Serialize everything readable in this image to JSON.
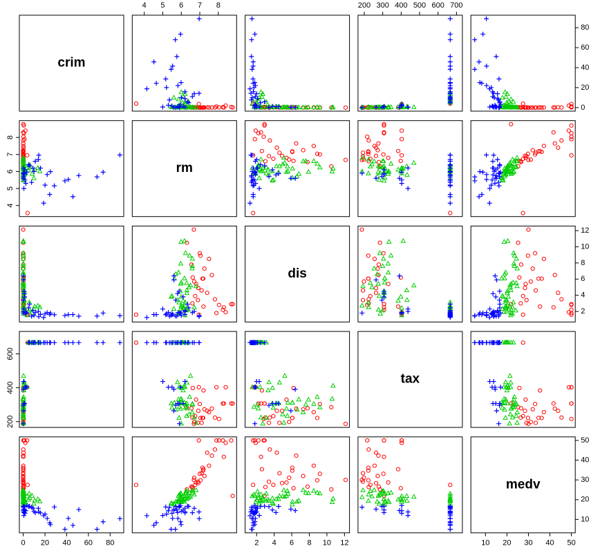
{
  "chart_data": {
    "type": "scatter_matrix",
    "variables": [
      {
        "name": "crim",
        "lim": [
          -3.55,
          92.5
        ],
        "xticks": [
          0,
          20,
          40,
          60,
          80
        ],
        "yticks": [
          0,
          20,
          40,
          60,
          80
        ]
      },
      {
        "name": "rm",
        "lim": [
          3.35,
          8.99
        ],
        "xticks": [
          4,
          5,
          6,
          7,
          8
        ],
        "yticks": [
          4,
          5,
          6,
          7,
          8
        ]
      },
      {
        "name": "dis",
        "lim": [
          0.69,
          12.57
        ],
        "xticks": [
          2,
          4,
          6,
          8,
          10,
          12
        ],
        "yticks": [
          2,
          4,
          6,
          8,
          10,
          12
        ]
      },
      {
        "name": "tax",
        "lim": [
          166,
          732
        ],
        "xticks": [
          200,
          300,
          400,
          500,
          600,
          700
        ],
        "yticks": [
          200,
          400,
          600
        ]
      },
      {
        "name": "medv",
        "lim": [
          3.2,
          51.8
        ],
        "xticks": [
          10,
          20,
          30,
          40,
          50
        ],
        "yticks": [
          10,
          20,
          30,
          40,
          50
        ]
      }
    ],
    "series": [
      {
        "color": "#ff0000",
        "marker": "circle",
        "values": [
          [
            0.03,
            7.18,
            6.06,
            222,
            34.7
          ],
          [
            0.03,
            7.15,
            6.06,
            222,
            36.2
          ],
          [
            0.09,
            7.82,
            3.5,
            224,
            45.4
          ],
          [
            0.13,
            8.78,
            2.9,
            307,
            21.9
          ],
          [
            0.02,
            7.25,
            7.3,
            273,
            32.0
          ],
          [
            0.06,
            6.8,
            5.4,
            330,
            28.7
          ],
          [
            0.07,
            6.92,
            4.9,
            264,
            28.4
          ],
          [
            0.04,
            7.0,
            9.2,
            304,
            33.1
          ],
          [
            0.01,
            6.68,
            12.13,
            187,
            30.0
          ],
          [
            0.1,
            7.5,
            8.5,
            256,
            37.2
          ],
          [
            0.25,
            8.04,
            2.8,
            216,
            50.0
          ],
          [
            0.5,
            8.25,
            2.2,
            307,
            50.0
          ],
          [
            1.1,
            7.9,
            1.8,
            403,
            50.0
          ],
          [
            2.0,
            8.4,
            1.9,
            403,
            48.8
          ],
          [
            3.6,
            6.95,
            1.6,
            403,
            50.0
          ],
          [
            0.3,
            7.4,
            4.3,
            264,
            43.8
          ],
          [
            0.02,
            6.7,
            5.7,
            198,
            31.1
          ],
          [
            0.06,
            7.65,
            6.5,
            277,
            42.3
          ],
          [
            0.14,
            6.9,
            3.4,
            193,
            29.1
          ],
          [
            0.18,
            7.2,
            2.6,
            384,
            35.4
          ],
          [
            0.08,
            6.55,
            7.8,
            279,
            26.6
          ],
          [
            0.21,
            6.75,
            3.9,
            233,
            27.5
          ],
          [
            0.05,
            7.1,
            4.6,
            193,
            33.4
          ],
          [
            0.12,
            8.3,
            2.5,
            307,
            41.7
          ],
          [
            0.33,
            6.62,
            6.2,
            398,
            25.8
          ],
          [
            0.02,
            7.04,
            8.9,
            222,
            29.8
          ],
          [
            0.01,
            6.3,
            10.5,
            285,
            25.2
          ],
          [
            0.09,
            6.6,
            3.0,
            224,
            26.4
          ],
          [
            4.0,
            3.56,
            1.6,
            666,
            27.5
          ],
          [
            0.6,
            8.7,
            2.9,
            307,
            50.0
          ]
        ]
      },
      {
        "color": "#00cd00",
        "marker": "triangle",
        "values": [
          [
            0.03,
            6.42,
            4.97,
            242,
            21.6
          ],
          [
            0.09,
            6.0,
            5.56,
            311,
            22.9
          ],
          [
            0.15,
            6.17,
            6.08,
            311,
            18.9
          ],
          [
            0.21,
            5.63,
            6.06,
            311,
            17.5
          ],
          [
            0.63,
            5.95,
            4.5,
            307,
            20.2
          ],
          [
            0.73,
            6.3,
            4.25,
            307,
            20.2
          ],
          [
            0.8,
            5.46,
            3.79,
            307,
            18.2
          ],
          [
            0.06,
            5.97,
            5.4,
            276,
            21.9
          ],
          [
            0.04,
            6.29,
            5.5,
            233,
            24.3
          ],
          [
            0.1,
            6.7,
            2.5,
            224,
            22.6
          ],
          [
            0.11,
            6.17,
            10.7,
            411,
            20.4
          ],
          [
            0.02,
            5.99,
            10.6,
            334,
            18.7
          ],
          [
            0.05,
            6.23,
            9.2,
            284,
            23.1
          ],
          [
            0.08,
            6.6,
            8.5,
            304,
            24.4
          ],
          [
            0.14,
            5.97,
            7.9,
            329,
            23.2
          ],
          [
            0.03,
            6.59,
            7.3,
            254,
            24.8
          ],
          [
            0.07,
            5.85,
            6.8,
            330,
            19.4
          ],
          [
            0.26,
            6.31,
            2.2,
            277,
            22.0
          ],
          [
            0.18,
            6.0,
            2.7,
            188,
            21.2
          ],
          [
            0.5,
            5.88,
            3.1,
            222,
            19.3
          ],
          [
            1.2,
            6.12,
            2.4,
            403,
            19.6
          ],
          [
            2.2,
            5.88,
            1.9,
            403,
            18.6
          ],
          [
            3.5,
            6.2,
            1.5,
            403,
            21.7
          ],
          [
            4.9,
            6.06,
            2.0,
            666,
            19.9
          ],
          [
            6.0,
            6.38,
            2.2,
            666,
            20.8
          ],
          [
            8.2,
            5.85,
            1.8,
            666,
            21.9
          ],
          [
            9.8,
            5.6,
            2.3,
            666,
            17.9
          ],
          [
            10.6,
            6.1,
            2.6,
            666,
            19.5
          ],
          [
            13.5,
            6.2,
            2.7,
            666,
            20.2
          ],
          [
            15.3,
            6.0,
            2.5,
            666,
            19.1
          ],
          [
            5.66,
            6.22,
            3.1,
            666,
            23.0
          ],
          [
            0.44,
            6.3,
            4.6,
            430,
            21.8
          ],
          [
            0.9,
            5.8,
            3.4,
            432,
            19.4
          ],
          [
            0.31,
            6.5,
            5.2,
            469,
            21.4
          ],
          [
            0.58,
            6.0,
            3.8,
            398,
            20.6
          ],
          [
            0.12,
            6.25,
            2.1,
            300,
            24.1
          ],
          [
            0.19,
            5.9,
            1.7,
            287,
            22.5
          ],
          [
            0.35,
            6.45,
            8.9,
            345,
            23.5
          ],
          [
            0.04,
            5.7,
            6.6,
            270,
            18.9
          ],
          [
            0.06,
            6.8,
            5.1,
            193,
            24.7
          ],
          [
            0.15,
            5.5,
            3.9,
            281,
            17.8
          ],
          [
            0.01,
            6.6,
            7.6,
            300,
            23.4
          ],
          [
            0.47,
            6.1,
            3.3,
            384,
            20.0
          ]
        ]
      },
      {
        "color": "#0000ff",
        "marker": "plus",
        "values": [
          [
            88.98,
            6.97,
            1.47,
            666,
            10.4
          ],
          [
            73.53,
            5.96,
            1.8,
            666,
            8.8
          ],
          [
            67.92,
            5.68,
            1.43,
            666,
            5
          ],
          [
            51.14,
            5.76,
            1.41,
            666,
            15
          ],
          [
            45.75,
            4.52,
            1.61,
            666,
            7
          ],
          [
            41.53,
            5.53,
            1.6,
            666,
            10.5
          ],
          [
            38.35,
            5.45,
            1.49,
            666,
            5
          ],
          [
            28.66,
            5.16,
            1.59,
            666,
            16.3
          ],
          [
            25.05,
            5.99,
            1.79,
            666,
            7.4
          ],
          [
            24.39,
            4.65,
            1.61,
            666,
            8.3
          ],
          [
            22.05,
            5.82,
            1.86,
            666,
            10.5
          ],
          [
            20.08,
            5.2,
            1.7,
            666,
            12.7
          ],
          [
            18.81,
            4.14,
            1.25,
            666,
            11.9
          ],
          [
            15.87,
            6.2,
            1.63,
            666,
            13.3
          ],
          [
            14.33,
            6.96,
            1.35,
            666,
            13.8
          ],
          [
            13.91,
            6.7,
            2.0,
            666,
            15.6
          ],
          [
            11.1,
            6.6,
            1.86,
            666,
            13.4
          ],
          [
            9.92,
            6.0,
            1.5,
            666,
            14.1
          ],
          [
            8.98,
            6.2,
            2.1,
            666,
            15.7
          ],
          [
            7.67,
            5.36,
            1.41,
            666,
            16.1
          ],
          [
            5.82,
            6.34,
            2.9,
            666,
            16.7
          ],
          [
            4.87,
            6.4,
            2.45,
            666,
            16.6
          ],
          [
            3.32,
            5.96,
            1.82,
            403,
            17.0
          ],
          [
            2.37,
            5.3,
            1.88,
            403,
            14.4
          ],
          [
            1.61,
            5.5,
            1.76,
            403,
            13.1
          ],
          [
            1.23,
            6.1,
            3.8,
            307,
            14.8
          ],
          [
            0.98,
            5.8,
            4.2,
            307,
            13.5
          ],
          [
            0.85,
            5.88,
            4.5,
            307,
            16.6
          ],
          [
            0.32,
            5.6,
            5.9,
            264,
            15.2
          ],
          [
            0.17,
            5.7,
            3.4,
            296,
            16.5
          ],
          [
            0.6,
            5.0,
            2.3,
            437,
            12.0
          ],
          [
            0.4,
            6.2,
            2.0,
            437,
            13.8
          ],
          [
            0.25,
            5.6,
            6.4,
            391,
            14.5
          ],
          [
            0.09,
            5.9,
            1.8,
            188,
            16.2
          ]
        ]
      }
    ]
  }
}
